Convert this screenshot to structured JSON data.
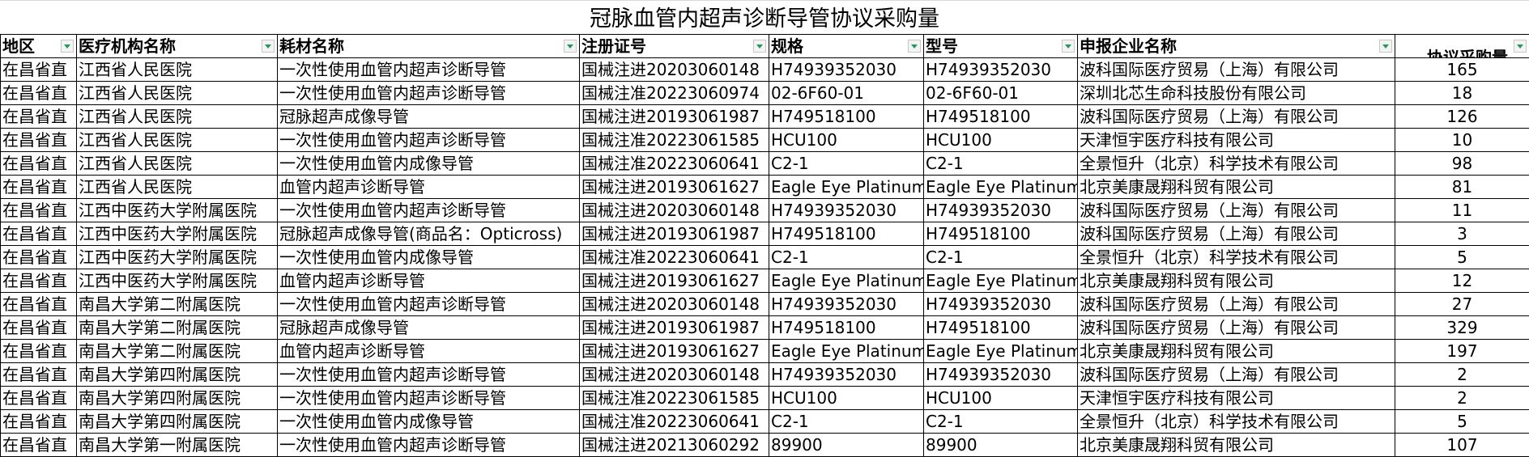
{
  "title": "冠脉血管内超声诊断导管协议采购量",
  "columns": [
    "地区",
    "医疗机构名称",
    "耗材名称",
    "注册证号",
    "规格",
    "型号",
    "申报企业名称",
    "协议采购量"
  ],
  "rows": [
    [
      "在昌省直",
      "江西省人民医院",
      "一次性使用血管内超声诊断导管",
      "国械注进20203060148",
      "H74939352030",
      "H74939352030",
      "波科国际医疗贸易（上海）有限公司",
      "165"
    ],
    [
      "在昌省直",
      "江西省人民医院",
      "一次性使用血管内超声诊断导管",
      "国械注准20223060974",
      "02-6F60-01",
      "02-6F60-01",
      "深圳北芯生命科技股份有限公司",
      "18"
    ],
    [
      "在昌省直",
      "江西省人民医院",
      "冠脉超声成像导管",
      "国械注进20193061987",
      "H749518100",
      "H749518100",
      "波科国际医疗贸易（上海）有限公司",
      "126"
    ],
    [
      "在昌省直",
      "江西省人民医院",
      "一次性使用血管内超声诊断导管",
      "国械注准20223061585",
      "HCU100",
      "HCU100",
      "天津恒宇医疗科技有限公司",
      "10"
    ],
    [
      "在昌省直",
      "江西省人民医院",
      "一次性使用血管内成像导管",
      "国械注准20223060641",
      "C2-1",
      "C2-1",
      "全景恒升（北京）科学技术有限公司",
      "98"
    ],
    [
      "在昌省直",
      "江西省人民医院",
      "血管内超声诊断导管",
      "国械注进20193061627",
      "Eagle Eye Platinum",
      "Eagle Eye Platinum",
      "北京美康晟翔科贸有限公司",
      "81"
    ],
    [
      "在昌省直",
      "江西中医药大学附属医院",
      "一次性使用血管内超声诊断导管",
      "国械注进20203060148",
      "H74939352030",
      "H74939352030",
      "波科国际医疗贸易（上海）有限公司",
      "11"
    ],
    [
      "在昌省直",
      "江西中医药大学附属医院",
      "冠脉超声成像导管(商品名：Opticross)",
      "国械注进20193061987",
      "H749518100",
      "H749518100",
      "波科国际医疗贸易（上海）有限公司",
      "3"
    ],
    [
      "在昌省直",
      "江西中医药大学附属医院",
      "一次性使用血管内成像导管",
      "国械注准20223060641",
      "C2-1",
      "C2-1",
      "全景恒升（北京）科学技术有限公司",
      "5"
    ],
    [
      "在昌省直",
      "江西中医药大学附属医院",
      "血管内超声诊断导管",
      "国械注进20193061627",
      "Eagle Eye Platinum",
      "Eagle Eye Platinum",
      "北京美康晟翔科贸有限公司",
      "12"
    ],
    [
      "在昌省直",
      "南昌大学第二附属医院",
      "一次性使用血管内超声诊断导管",
      "国械注进20203060148",
      "H74939352030",
      "H74939352030",
      "波科国际医疗贸易（上海）有限公司",
      "27"
    ],
    [
      "在昌省直",
      "南昌大学第二附属医院",
      "冠脉超声成像导管",
      "国械注进20193061987",
      "H749518100",
      "H749518100",
      "波科国际医疗贸易（上海）有限公司",
      "329"
    ],
    [
      "在昌省直",
      "南昌大学第二附属医院",
      "血管内超声诊断导管",
      "国械注进20193061627",
      "Eagle Eye Platinum",
      "Eagle Eye Platinum",
      "北京美康晟翔科贸有限公司",
      "197"
    ],
    [
      "在昌省直",
      "南昌大学第四附属医院",
      "一次性使用血管内超声诊断导管",
      "国械注进20203060148",
      "H74939352030",
      "H74939352030",
      "波科国际医疗贸易（上海）有限公司",
      "2"
    ],
    [
      "在昌省直",
      "南昌大学第四附属医院",
      "一次性使用血管内超声诊断导管",
      "国械注准20223061585",
      "HCU100",
      "HCU100",
      "天津恒宇医疗科技有限公司",
      "2"
    ],
    [
      "在昌省直",
      "南昌大学第四附属医院",
      "一次性使用血管内成像导管",
      "国械注准20223060641",
      "C2-1",
      "C2-1",
      "全景恒升（北京）科学技术有限公司",
      "5"
    ],
    [
      "在昌省直",
      "南昌大学第一附属医院",
      "一次性使用血管内超声诊断导管",
      "国械注进20213060292",
      "89900",
      "89900",
      "北京美康晟翔科贸有限公司",
      "107"
    ]
  ]
}
